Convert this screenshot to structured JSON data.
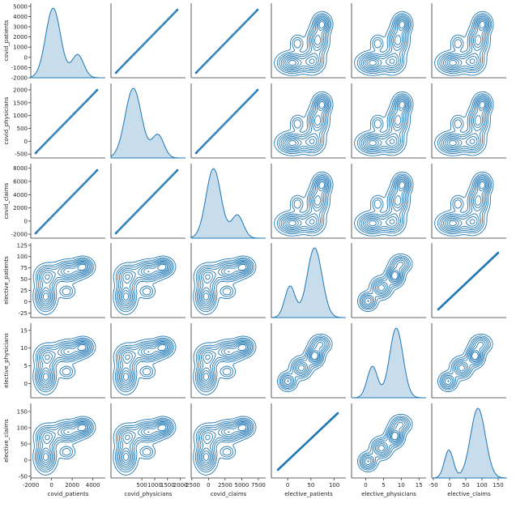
{
  "chart_data": {
    "type": "pairplot",
    "diag_kind": "kde",
    "offdiag_kind": "kde",
    "grid": false,
    "color": "#1f77b4",
    "variables": [
      "covid_patients",
      "covid_physicians",
      "covid_claims",
      "elective_patients",
      "elective_physicians",
      "elective_claims"
    ],
    "ticks": [
      {
        "values": [
          -2000,
          0,
          2000,
          4000
        ],
        "labels": [
          "-2000",
          "0",
          "2000",
          "4000"
        ]
      },
      {
        "values": [
          500,
          1000,
          1500,
          2000
        ],
        "labels": [
          "500",
          "1000",
          "1500",
          "2000"
        ]
      },
      {
        "values": [
          -2500,
          0,
          2500,
          5000,
          7500
        ],
        "labels": [
          "-2500",
          "0",
          "2500",
          "5000",
          "7500"
        ]
      },
      {
        "values": [
          0,
          50,
          100
        ],
        "labels": [
          "0",
          "50",
          "100"
        ]
      },
      {
        "values": [
          0,
          5,
          10,
          15
        ],
        "labels": [
          "0",
          "5",
          "10",
          "15"
        ]
      },
      {
        "values": [
          -50,
          0,
          50,
          100,
          150
        ],
        "labels": [
          "-50",
          "0",
          "50",
          "100",
          "150"
        ]
      }
    ],
    "y_ticks": [
      {
        "values": [
          -2000,
          -1000,
          0,
          1000,
          2000,
          3000,
          4000,
          5000
        ],
        "labels": [
          "-2000",
          "-1000",
          "0",
          "1000",
          "2000",
          "3000",
          "4000",
          "5000"
        ]
      },
      {
        "values": [
          -500,
          0,
          500,
          1000,
          1500,
          2000
        ],
        "labels": [
          "-500",
          "0",
          "500",
          "1000",
          "1500",
          "2000"
        ]
      },
      {
        "values": [
          -2000,
          0,
          2000,
          4000,
          6000,
          8000
        ],
        "labels": [
          "-2000",
          "0",
          "2000",
          "4000",
          "6000",
          "8000"
        ]
      },
      {
        "values": [
          -25,
          0,
          25,
          50,
          75,
          100,
          125
        ],
        "labels": [
          "-25",
          "0",
          "25",
          "50",
          "75",
          "100",
          "125"
        ]
      },
      {
        "values": [
          0,
          5,
          10,
          15
        ],
        "labels": [
          "0",
          "5",
          "10",
          "15"
        ]
      },
      {
        "values": [
          -50,
          0,
          50,
          100,
          150
        ],
        "labels": [
          "-50",
          "0",
          "50",
          "100",
          "150"
        ]
      }
    ],
    "xlim": [
      [
        -2000,
        5200
      ],
      [
        -700,
        2200
      ],
      [
        -2600,
        8600
      ],
      [
        -35,
        125
      ],
      [
        -4,
        17
      ],
      [
        -55,
        175
      ]
    ],
    "ylim": [
      [
        -2000,
        5300
      ],
      [
        -650,
        2250
      ],
      [
        -2600,
        8700
      ],
      [
        -35,
        130
      ],
      [
        -4,
        17
      ],
      [
        -55,
        175
      ]
    ],
    "diagonal_density": [
      {
        "modes": [
          {
            "center": 0.3,
            "width": 0.1,
            "weight": 1.0
          },
          {
            "center": 0.63,
            "width": 0.08,
            "weight": 0.33
          }
        ]
      },
      {
        "modes": [
          {
            "center": 0.3,
            "width": 0.11,
            "weight": 1.0
          },
          {
            "center": 0.63,
            "width": 0.08,
            "weight": 0.33
          }
        ]
      },
      {
        "modes": [
          {
            "center": 0.3,
            "width": 0.1,
            "weight": 1.0
          },
          {
            "center": 0.62,
            "width": 0.08,
            "weight": 0.33
          }
        ]
      },
      {
        "modes": [
          {
            "center": 0.25,
            "width": 0.07,
            "weight": 0.45
          },
          {
            "center": 0.58,
            "width": 0.1,
            "weight": 1.0
          }
        ]
      },
      {
        "modes": [
          {
            "center": 0.28,
            "width": 0.07,
            "weight": 0.45
          },
          {
            "center": 0.6,
            "width": 0.09,
            "weight": 1.0
          }
        ]
      },
      {
        "modes": [
          {
            "center": 0.23,
            "width": 0.06,
            "weight": 0.4
          },
          {
            "center": 0.62,
            "width": 0.1,
            "weight": 1.0
          }
        ]
      }
    ]
  }
}
